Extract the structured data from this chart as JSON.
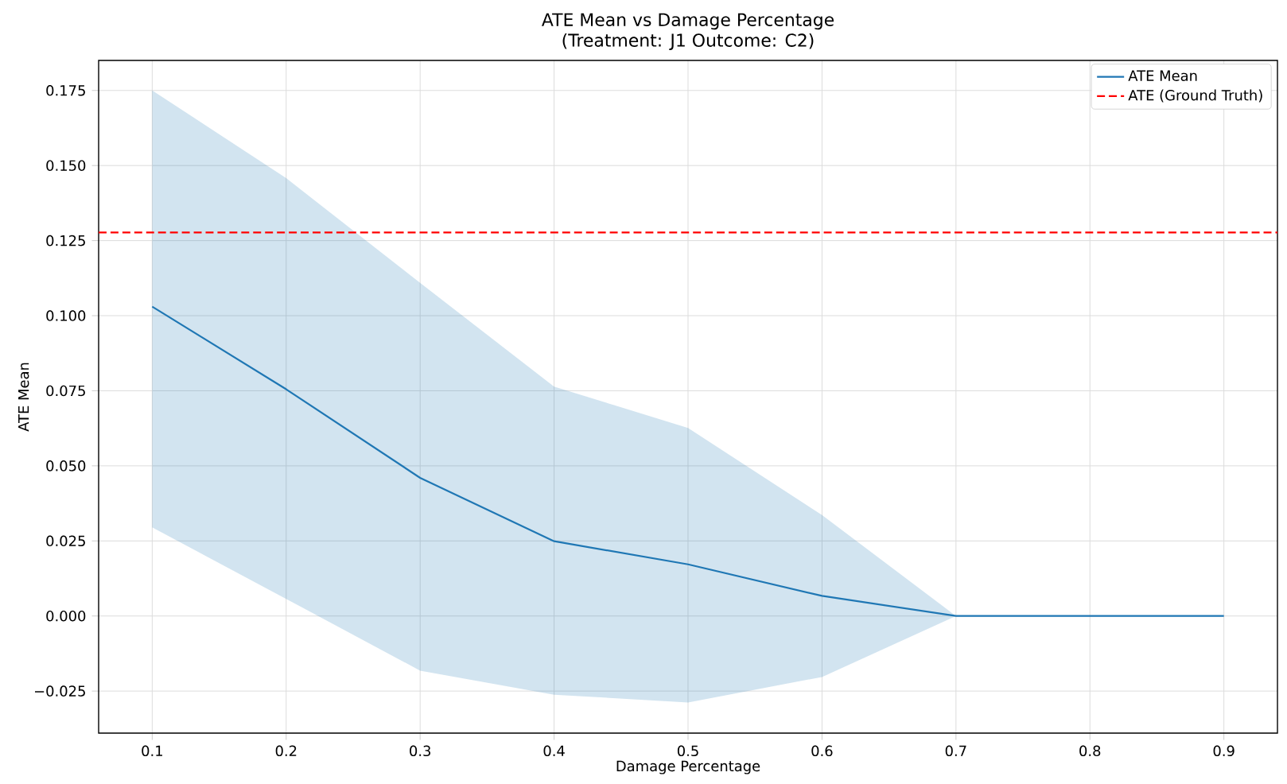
{
  "chart_data": {
    "type": "line",
    "title": "ATE Mean vs Damage Percentage",
    "subtitle": "(Treatment: J1 Outcome: C2)",
    "xlabel": "Damage Percentage",
    "ylabel": "ATE Mean",
    "x": [
      0.1,
      0.2,
      0.3,
      0.4,
      0.5,
      0.6,
      0.7,
      0.8,
      0.9
    ],
    "series": [
      {
        "name": "ATE Mean",
        "color": "#1f77b4",
        "values": [
          0.103,
          0.0755,
          0.046,
          0.0249,
          0.0172,
          0.0067,
          0,
          0,
          0
        ],
        "lower": [
          0.0295,
          0.0057,
          -0.0182,
          -0.0262,
          -0.0288,
          -0.0203,
          0,
          0,
          0
        ],
        "upper": [
          0.175,
          0.1458,
          0.1109,
          0.0764,
          0.0626,
          0.0336,
          0,
          0,
          0
        ]
      }
    ],
    "ref_lines": [
      {
        "axis": "y",
        "value": 0.1277,
        "label": "ATE (Ground Truth)",
        "color": "#ff0000",
        "line_style": "dashed"
      }
    ],
    "xlim": [
      0.06,
      0.94
    ],
    "ylim": [
      -0.039,
      0.185
    ],
    "xticks": [
      0.1,
      0.2,
      0.3,
      0.4,
      0.5,
      0.6,
      0.7,
      0.8,
      0.9
    ],
    "yticks": [
      {
        "value": -0.025,
        "label": "−0.025"
      },
      {
        "value": 0,
        "label": "0.000"
      },
      {
        "value": 0.025,
        "label": "0.025"
      },
      {
        "value": 0.05,
        "label": "0.050"
      },
      {
        "value": 0.075,
        "label": "0.075"
      },
      {
        "value": 0.1,
        "label": "0.100"
      },
      {
        "value": 0.125,
        "label": "0.125"
      },
      {
        "value": 0.15,
        "label": "0.150"
      },
      {
        "value": 0.175,
        "label": "0.175"
      }
    ],
    "grid": true,
    "legend": "top right",
    "marker": "none",
    "line_style": "solid"
  }
}
